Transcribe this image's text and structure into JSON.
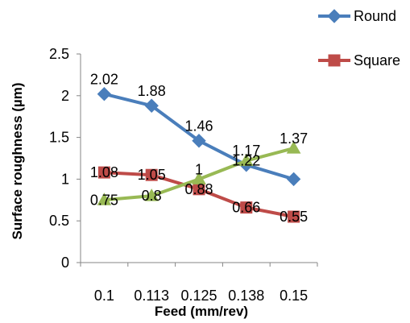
{
  "chart_data": {
    "type": "line",
    "title": "",
    "xlabel": "Feed (mm/rev)",
    "ylabel": "Surface roughness (µm)",
    "categories": [
      "0.1",
      "0.113",
      "0.125",
      "0.138",
      "0.15"
    ],
    "ylim": [
      0,
      2.5
    ],
    "yticks": [
      "0",
      "0.5",
      "1",
      "1.5",
      "2",
      "2.5"
    ],
    "grid": false,
    "legend_position": "top-right",
    "series": [
      {
        "name": "Round",
        "color": "#4a7ebb",
        "marker": "diamond",
        "values": [
          2.02,
          1.88,
          1.46,
          1.17,
          1.0
        ],
        "labels": [
          "2.02",
          "1.88",
          "1.46",
          "1.17",
          ""
        ]
      },
      {
        "name": "Square",
        "color": "#be4b48",
        "marker": "square",
        "values": [
          1.08,
          1.05,
          0.88,
          0.66,
          0.55
        ],
        "labels": [
          "1.08",
          "1.05",
          "0.88",
          "0.66",
          "0.55"
        ]
      },
      {
        "name": "",
        "color": "#98b954",
        "marker": "triangle",
        "values": [
          0.75,
          0.8,
          1.0,
          1.22,
          1.37
        ],
        "labels": [
          "0.75",
          "0.8",
          "1",
          "1.22",
          "1.37"
        ]
      }
    ]
  }
}
